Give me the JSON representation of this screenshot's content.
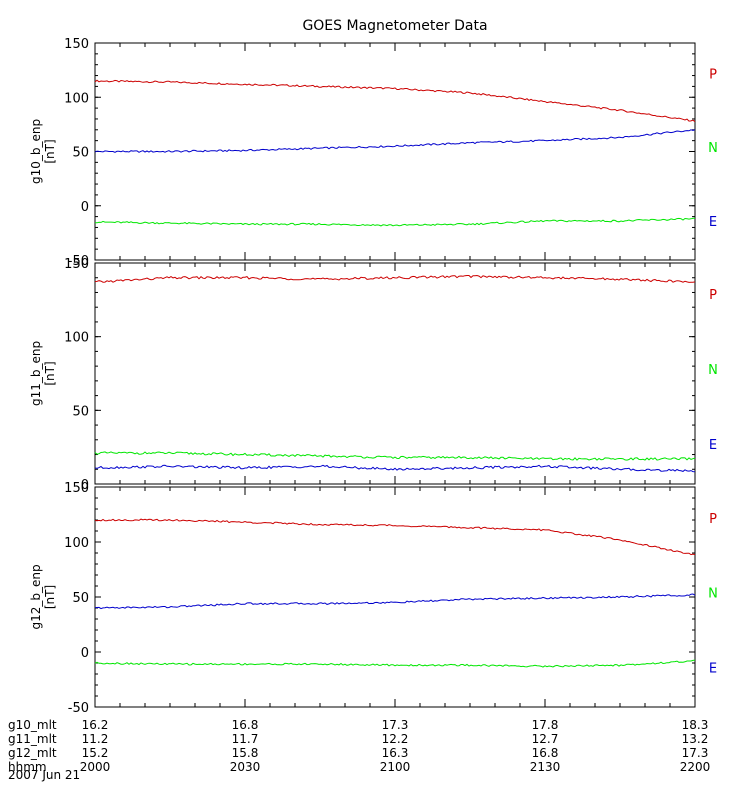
{
  "colors": {
    "P": "#cc0000",
    "N": "#00e600",
    "E": "#0000cc",
    "axis": "#000000",
    "background": "#ffffff"
  },
  "chart_data": {
    "type": "line",
    "title": "GOES Magnetometer Data",
    "x_index_range": [
      0,
      4
    ],
    "panels": [
      {
        "name": "g10",
        "ylabel": "g10_b_enp",
        "yunits": "[nT]",
        "ylim": [
          -50,
          150
        ],
        "yticks": [
          -50,
          0,
          50,
          100,
          150
        ],
        "legend": [
          {
            "label": "P",
            "color": "#cc0000"
          },
          {
            "label": "N",
            "color": "#00e600"
          },
          {
            "label": "E",
            "color": "#0000cc"
          }
        ],
        "series": [
          {
            "name": "P",
            "color": "#cc0000",
            "x": [
              0,
              0.5,
              1,
              1.5,
              2,
              2.5,
              3,
              3.5,
              4
            ],
            "values": [
              115,
              114,
              112,
              110,
              108,
              104,
              96,
              88,
              78
            ]
          },
          {
            "name": "blue",
            "color": "#0000cc",
            "x": [
              0,
              0.5,
              1,
              1.5,
              2,
              2.5,
              3,
              3.5,
              4
            ],
            "values": [
              50,
              50,
              51,
              53,
              55,
              58,
              60,
              63,
              70
            ]
          },
          {
            "name": "green",
            "color": "#00e600",
            "x": [
              0,
              0.5,
              1,
              1.5,
              2,
              2.5,
              3,
              3.5,
              4
            ],
            "values": [
              -15,
              -16,
              -17,
              -17,
              -18,
              -17,
              -14,
              -14,
              -12
            ]
          }
        ]
      },
      {
        "name": "g11",
        "ylabel": "g11_b_enp",
        "yunits": "[nT]",
        "ylim": [
          0,
          150
        ],
        "yticks": [
          0,
          50,
          100,
          150
        ],
        "legend": [
          {
            "label": "P",
            "color": "#cc0000"
          },
          {
            "label": "N",
            "color": "#00e600"
          },
          {
            "label": "E",
            "color": "#0000cc"
          }
        ],
        "series": [
          {
            "name": "P",
            "color": "#cc0000",
            "x": [
              0,
              0.5,
              1,
              1.5,
              2,
              2.5,
              3,
              3.5,
              4
            ],
            "values": [
              137,
              140,
              140,
              139,
              140,
              141,
              140,
              139,
              137
            ]
          },
          {
            "name": "green",
            "color": "#00e600",
            "x": [
              0,
              0.5,
              1,
              1.5,
              2,
              2.5,
              3,
              3.5,
              4
            ],
            "values": [
              21,
              21,
              20,
              19,
              18,
              18,
              17,
              17,
              17
            ]
          },
          {
            "name": "blue",
            "color": "#0000cc",
            "x": [
              0,
              0.5,
              1,
              1.5,
              2,
              2.5,
              3,
              3.5,
              4
            ],
            "values": [
              11,
              12,
              11,
              12,
              10,
              11,
              12,
              10,
              9
            ]
          }
        ]
      },
      {
        "name": "g12",
        "ylabel": "g12_b_enp",
        "yunits": "[nT]",
        "ylim": [
          -50,
          150
        ],
        "yticks": [
          -50,
          0,
          50,
          100,
          150
        ],
        "legend": [
          {
            "label": "P",
            "color": "#cc0000"
          },
          {
            "label": "N",
            "color": "#00e600"
          },
          {
            "label": "E",
            "color": "#0000cc"
          }
        ],
        "series": [
          {
            "name": "P",
            "color": "#cc0000",
            "x": [
              0,
              0.5,
              1,
              1.5,
              2,
              2.5,
              3,
              3.5,
              4
            ],
            "values": [
              120,
              120,
              118,
              116,
              115,
              113,
              111,
              102,
              88
            ]
          },
          {
            "name": "blue",
            "color": "#0000cc",
            "x": [
              0,
              0.5,
              1,
              1.5,
              2,
              2.5,
              3,
              3.5,
              4
            ],
            "values": [
              40,
              41,
              44,
              44,
              45,
              48,
              49,
              50,
              52
            ]
          },
          {
            "name": "green",
            "color": "#00e600",
            "x": [
              0,
              0.5,
              1,
              1.5,
              2,
              2.5,
              3,
              3.5,
              4
            ],
            "values": [
              -10,
              -11,
              -11,
              -11,
              -12,
              -12,
              -13,
              -12,
              -8
            ]
          }
        ]
      }
    ],
    "x_axis_rows": [
      {
        "label": "g10_mlt",
        "values": [
          "16.2",
          "16.8",
          "17.3",
          "17.8",
          "18.3"
        ]
      },
      {
        "label": "g11_mlt",
        "values": [
          "11.2",
          "11.7",
          "12.2",
          "12.7",
          "13.2"
        ]
      },
      {
        "label": "g12_mlt",
        "values": [
          "15.2",
          "15.8",
          "16.3",
          "16.8",
          "17.3"
        ]
      },
      {
        "label": "hhmm",
        "values": [
          "2000",
          "2030",
          "2100",
          "2130",
          "2200"
        ]
      }
    ],
    "date_label": "2007 Jun 21"
  }
}
